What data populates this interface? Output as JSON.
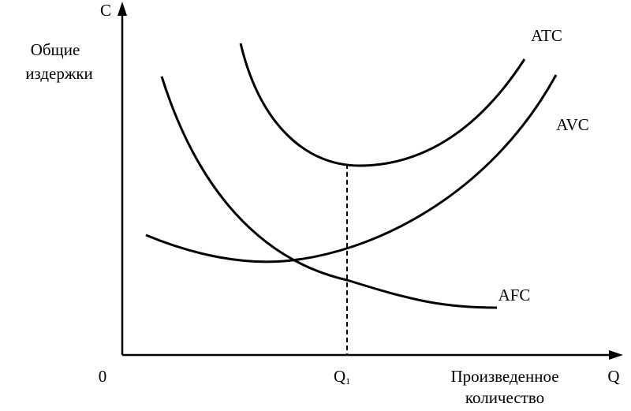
{
  "axes": {
    "y_label": "C",
    "y_title": [
      "Общие",
      "издержки"
    ],
    "origin": "0",
    "x_label": "Q",
    "x_title": [
      "Произведенное",
      "количество"
    ]
  },
  "marker": {
    "label": "Q",
    "subscript": "1"
  },
  "curves": [
    {
      "label": "ATC"
    },
    {
      "label": "AVC"
    },
    {
      "label": "AFC"
    }
  ]
}
